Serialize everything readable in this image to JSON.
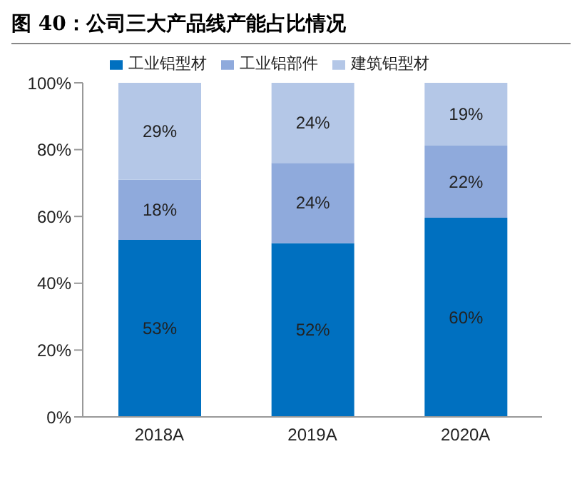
{
  "chart_data": {
    "type": "bar",
    "title": "图 40：公司三大产品线产能占比情况",
    "stacked": true,
    "categories": [
      "2018A",
      "2019A",
      "2020A"
    ],
    "series": [
      {
        "name": "工业铝型材",
        "color": "#0070c0",
        "values": [
          53,
          52,
          59.6
        ],
        "value_labels": [
          "53%",
          "52%",
          "60%"
        ]
      },
      {
        "name": "工业铝部件",
        "color": "#8faadc",
        "values": [
          18,
          24,
          21.6
        ],
        "value_labels": [
          "18%",
          "24%",
          "22%"
        ]
      },
      {
        "name": "建筑铝型材",
        "color": "#b4c7e7",
        "values": [
          29,
          24,
          18.8
        ],
        "value_labels": [
          "29%",
          "24%",
          "19%"
        ]
      }
    ],
    "ylim": [
      0,
      100
    ],
    "yticks": [
      {
        "value": 0,
        "label": "0%"
      },
      {
        "value": 20,
        "label": "20%"
      },
      {
        "value": 40,
        "label": "40%"
      },
      {
        "value": 60,
        "label": "60%"
      },
      {
        "value": 80,
        "label": "80%"
      },
      {
        "value": 100,
        "label": "100%"
      }
    ],
    "grid": false,
    "legend": "top"
  }
}
